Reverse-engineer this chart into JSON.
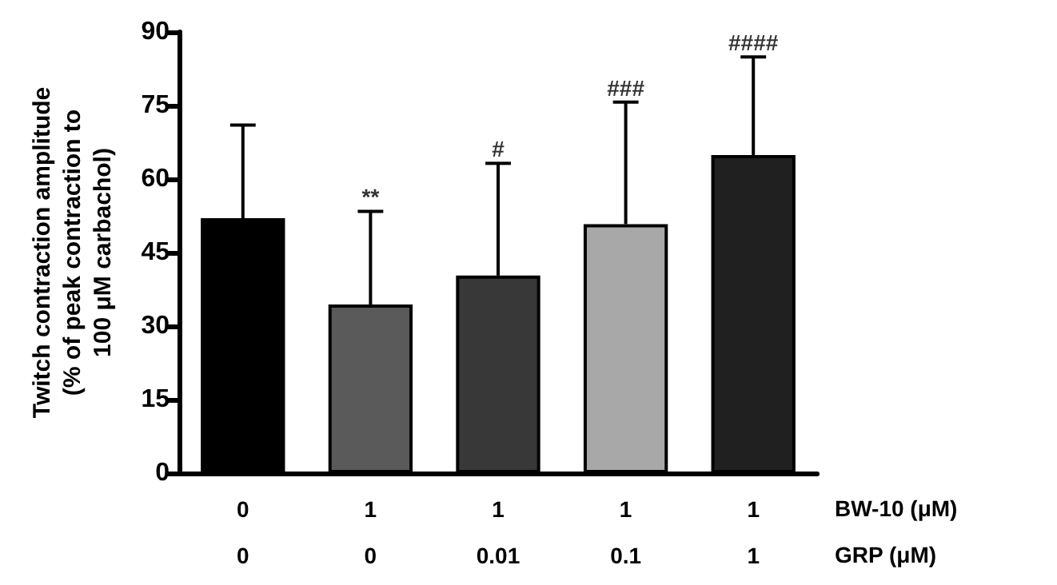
{
  "chart_data": {
    "type": "bar",
    "ylabel": "Twitch contraction amplitude\n(% of peak contraction to\n100 μM carbachol)",
    "categories": [
      "0\n0",
      "1\n0",
      "1\n0.01",
      "1\n0.1",
      "1\n1"
    ],
    "values": [
      52,
      34.4,
      40.3,
      50.8,
      64.9
    ],
    "colors": [
      "#000000",
      "#5a5a5a",
      "#383838",
      "#a8a8a8",
      "#202020"
    ],
    "errors": [
      [
        52,
        71
      ],
      [
        34.4,
        53.4
      ],
      [
        40.3,
        63.2
      ],
      [
        50.8,
        75.7
      ],
      [
        64.9,
        84.9
      ]
    ],
    "ylim": [
      0,
      90
    ],
    "yticks": [
      0,
      15,
      30,
      45,
      60,
      75,
      90
    ],
    "grid": false,
    "annotations": [
      {
        "text": "**",
        "x": "1\n0",
        "y": 53.4
      },
      {
        "text": "#",
        "x": "1\n0.01",
        "y": 63.2
      },
      {
        "text": "###",
        "x": "1\n0.1",
        "y": 75.7
      },
      {
        "text": "####",
        "x": "1\n1",
        "y": 84.9
      },
      "BW-10 (μM)",
      "GRP (μM)"
    ]
  }
}
